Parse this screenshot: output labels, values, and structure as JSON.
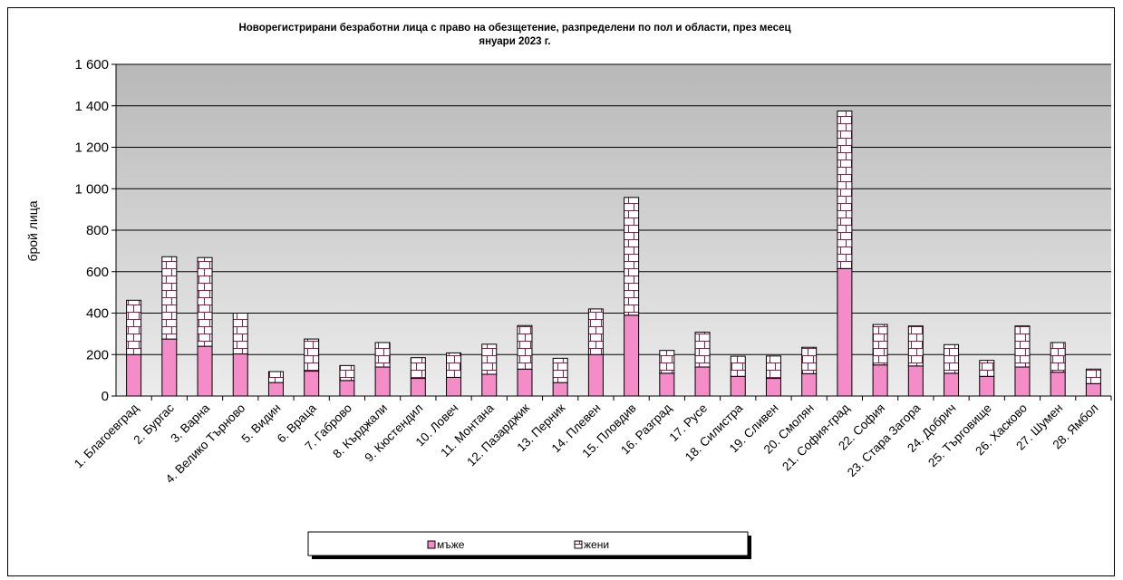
{
  "chart_data": {
    "type": "bar",
    "stacked": true,
    "title_lines": [
      "Новорегистрирани безработни лица с право на обезщетение, разпределени по пол и области, през месец",
      "януари 2023 г."
    ],
    "ylabel": "брой лица",
    "xlabel": "",
    "ylim": [
      0,
      1600
    ],
    "y_ticks": [
      "0",
      "200",
      "400",
      "600",
      "800",
      "1 000",
      "1 200",
      "1 400",
      "1 600"
    ],
    "grid": true,
    "legend_position": "bottom",
    "categories": [
      "1. Благоевград",
      "2. Бургас",
      "3. Варна",
      "4. Велико Търново",
      "5. Видин",
      "6. Враца",
      "7. Габрово",
      "8. Кърджали",
      "9. Кюстендил",
      "10. Ловеч",
      "11. Монтана",
      "12. Пазарджик",
      "13. Перник",
      "14. Плевен",
      "15. Пловдив",
      "16. Разград",
      "17. Русе",
      "18. Силистра",
      "19. Сливен",
      "20. Смолян",
      "21. София-град",
      "22. София",
      "23. Стара Загора",
      "24. Добрич",
      "25. Търговище",
      "26. Хасково",
      "27. Шумен",
      "28. Ямбол"
    ],
    "series": [
      {
        "name": "мъже",
        "color": "#f48cc8",
        "pattern": "solid",
        "values": [
          200,
          275,
          240,
          203,
          65,
          120,
          75,
          140,
          85,
          90,
          105,
          130,
          65,
          200,
          390,
          110,
          140,
          95,
          85,
          108,
          615,
          150,
          145,
          110,
          95,
          140,
          115,
          60
        ]
      },
      {
        "name": "жени",
        "color": "#ffffff",
        "pattern": "brick",
        "values": [
          262,
          397,
          428,
          197,
          53,
          155,
          72,
          118,
          100,
          118,
          145,
          210,
          117,
          220,
          568,
          110,
          168,
          97,
          108,
          127,
          760,
          195,
          193,
          138,
          77,
          198,
          143,
          70
        ]
      }
    ]
  }
}
